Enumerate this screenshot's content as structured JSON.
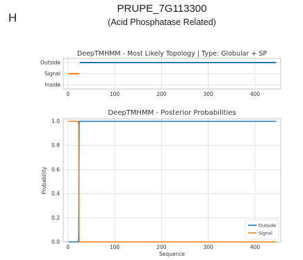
{
  "header": {
    "panel_letter": "H",
    "gene_id": "PRUPE_7G113300",
    "gene_desc": "(Acid Phosphatase Related)"
  },
  "chart_data": [
    {
      "type": "line",
      "title": "DeepTMHMM - Most Likely Topology | Type: Globular + SP",
      "categories": [
        "Outside",
        "Signal",
        "Inside"
      ],
      "xlim": [
        -10,
        455
      ],
      "xticks": [
        0,
        100,
        200,
        300,
        400
      ],
      "grid": true,
      "series": [
        {
          "color": "#1f77b4",
          "segments": [
            {
              "label": "Outside",
              "x": [
                25,
                445
              ]
            }
          ]
        },
        {
          "color": "#ff7f0e",
          "segments": [
            {
              "label": "Signal",
              "x": [
                1,
                24
              ]
            }
          ]
        }
      ]
    },
    {
      "type": "line",
      "title": "DeepTMHMM - Posterior Probabilities",
      "xlabel": "Sequence",
      "ylabel": "Probability",
      "xlim": [
        -10,
        455
      ],
      "ylim": [
        0,
        1.02
      ],
      "xticks": [
        0,
        100,
        200,
        300,
        400
      ],
      "yticks": [
        0.0,
        0.2,
        0.4,
        0.6,
        0.8,
        1.0
      ],
      "grid": true,
      "legend_position": "bottom-right",
      "series": [
        {
          "name": "Outside",
          "color": "#1f77b4",
          "x": [
            1,
            22,
            23,
            24,
            25,
            445
          ],
          "y": [
            0,
            0,
            0.03,
            1.0,
            1.0,
            1.0
          ]
        },
        {
          "name": "Signal",
          "color": "#ff7f0e",
          "x": [
            1,
            22,
            23,
            24,
            25,
            445
          ],
          "y": [
            1.0,
            1.0,
            0.97,
            0.0,
            0.0,
            0.0
          ]
        }
      ]
    }
  ]
}
